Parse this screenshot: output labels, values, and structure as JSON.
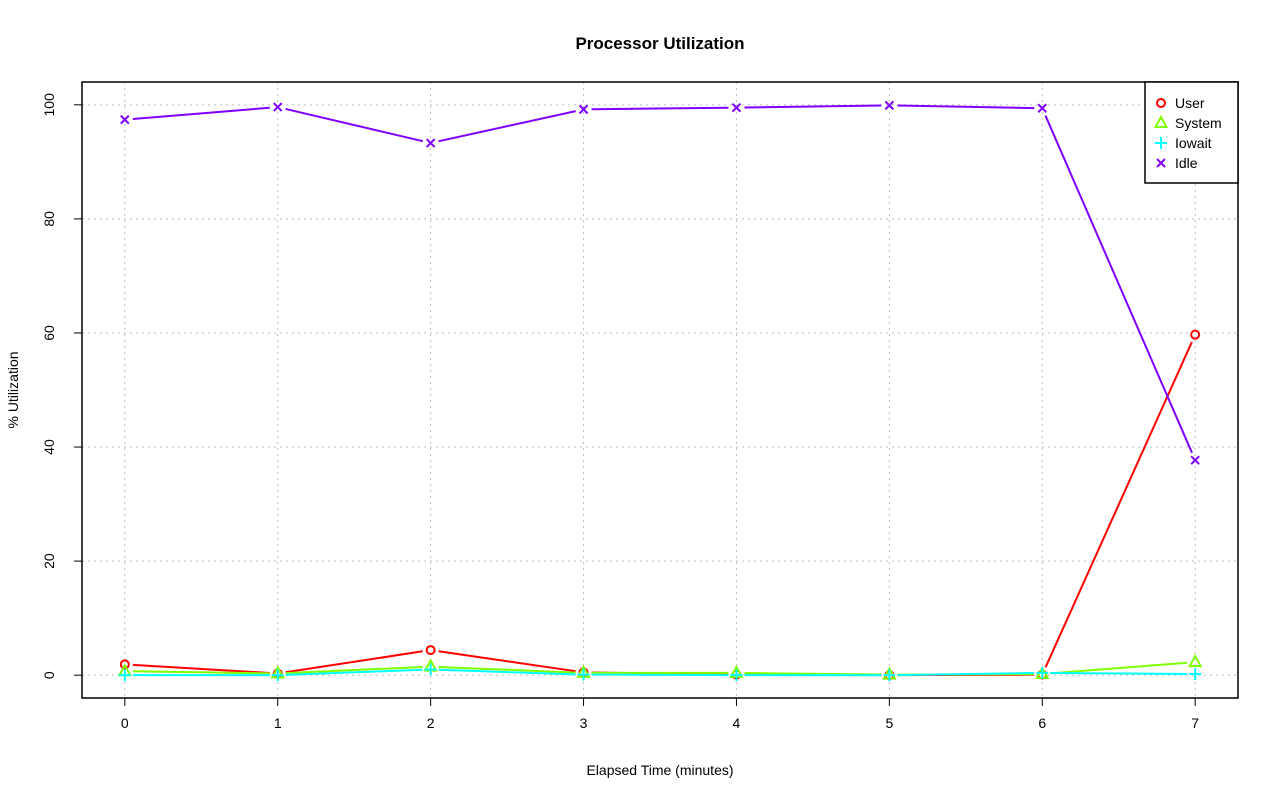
{
  "chart_data": {
    "type": "line",
    "title": "Processor Utilization",
    "xlabel": "Elapsed Time (minutes)",
    "ylabel": "% Utilization",
    "x": [
      0,
      1,
      2,
      3,
      4,
      5,
      6,
      7
    ],
    "xlim": [
      -0.28,
      7.28
    ],
    "ylim": [
      -4,
      104
    ],
    "xticks": [
      "0",
      "1",
      "2",
      "3",
      "4",
      "5",
      "6",
      "7"
    ],
    "yticks": [
      "0",
      "20",
      "40",
      "60",
      "80",
      "100"
    ],
    "grid": true,
    "legend_position": "top-right",
    "series": [
      {
        "name": "User",
        "color": "#ff0000",
        "marker": "circle",
        "values": [
          1.9,
          0.3,
          4.4,
          0.5,
          0.1,
          0.0,
          0.1,
          59.7
        ]
      },
      {
        "name": "System",
        "color": "#80ff00",
        "marker": "triangle",
        "values": [
          0.7,
          0.3,
          1.5,
          0.4,
          0.4,
          0.1,
          0.2,
          2.3
        ]
      },
      {
        "name": "Iowait",
        "color": "#00ffff",
        "marker": "plus",
        "values": [
          0.0,
          0.0,
          1.0,
          0.1,
          0.0,
          0.0,
          0.4,
          0.2
        ]
      },
      {
        "name": "Idle",
        "color": "#8000ff",
        "marker": "cross",
        "values": [
          97.4,
          99.6,
          93.3,
          99.2,
          99.5,
          99.9,
          99.4,
          37.7
        ]
      }
    ]
  }
}
